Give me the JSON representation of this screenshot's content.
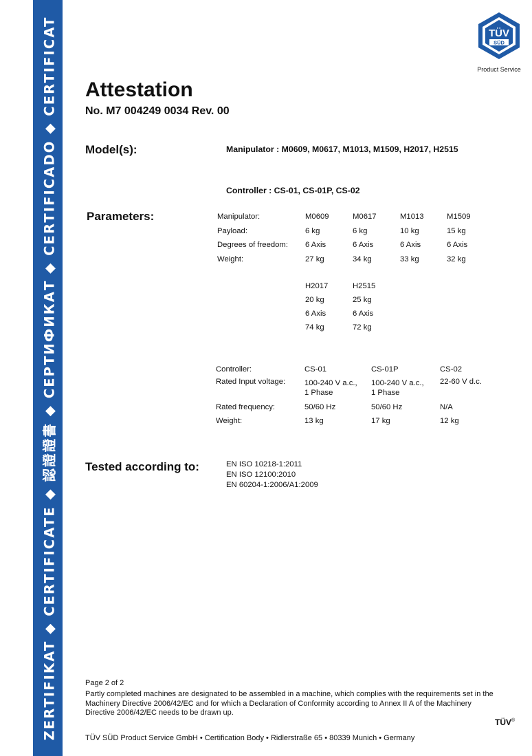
{
  "sidebar": {
    "text": "ZERTIFIKAT ◆ CERTIFICATE ◆ 認證證書 ◆ СЕРТИФИКАТ ◆ CERTIFICADO ◆ CERTIFICAT"
  },
  "logo": {
    "text_main": "TÜV",
    "text_sub": "SÜD",
    "caption": "Product Service"
  },
  "header": {
    "title": "Attestation",
    "number": "No. M7 004249 0034 Rev. 00"
  },
  "models": {
    "heading": "Model(s):",
    "manipulator": "Manipulator : M0609, M0617, M1013, M1509, H2017, H2515",
    "controller": "Controller : CS-01, CS-01P, CS-02"
  },
  "parameters": {
    "heading": "Parameters:",
    "manipulator_labels": [
      "Manipulator:",
      "Payload:",
      "Degrees of freedom:",
      "Weight:"
    ],
    "manipulators_row1": [
      [
        "M0609",
        "6 kg",
        "6 Axis",
        "27 kg"
      ],
      [
        "M0617",
        "6 kg",
        "6 Axis",
        "34 kg"
      ],
      [
        "M1013",
        "10 kg",
        "6 Axis",
        "33 kg"
      ],
      [
        "M1509",
        "15 kg",
        "6 Axis",
        "32 kg"
      ]
    ],
    "manipulators_row2": [
      [
        "H2017",
        "20 kg",
        "6 Axis",
        "74 kg"
      ],
      [
        "H2515",
        "25 kg",
        "6 Axis",
        "72 kg"
      ]
    ],
    "controller_labels": [
      "Controller:",
      "Rated Input voltage:",
      "Rated frequency:",
      "Weight:"
    ],
    "controllers": [
      [
        "CS-01",
        "100-240 V a.c.,",
        "1 Phase",
        "50/60 Hz",
        "13 kg"
      ],
      [
        "CS-01P",
        "100-240 V a.c.,",
        "1 Phase",
        "50/60 Hz",
        "17 kg"
      ],
      [
        "CS-02",
        "22-60 V d.c.",
        "",
        "N/A",
        "12 kg"
      ]
    ]
  },
  "tested": {
    "heading": "Tested according to:",
    "standards": [
      "EN ISO 10218-1:2011",
      "EN ISO 12100:2010",
      "EN 60204-1:2006/A1:2009"
    ]
  },
  "page": "Page 2 of 2",
  "note": "Partly completed machines are designated to be assembled in a machine, which complies with the requirements set in the Machinery Directive 2006/42/EC and for which a Declaration of Conformity according to Annex II A of the Machinery Directive 2006/42/EC needs to be drawn up.",
  "footer": "TÜV SÜD Product Service GmbH • Certification Body • Ridlerstraße 65 • 80339 Munich • Germany",
  "tuv_mark": {
    "text": "TÜV",
    "reg": "®"
  },
  "colors": {
    "sidebar": "#1f5aa6",
    "logo": "#1f5aa6"
  }
}
